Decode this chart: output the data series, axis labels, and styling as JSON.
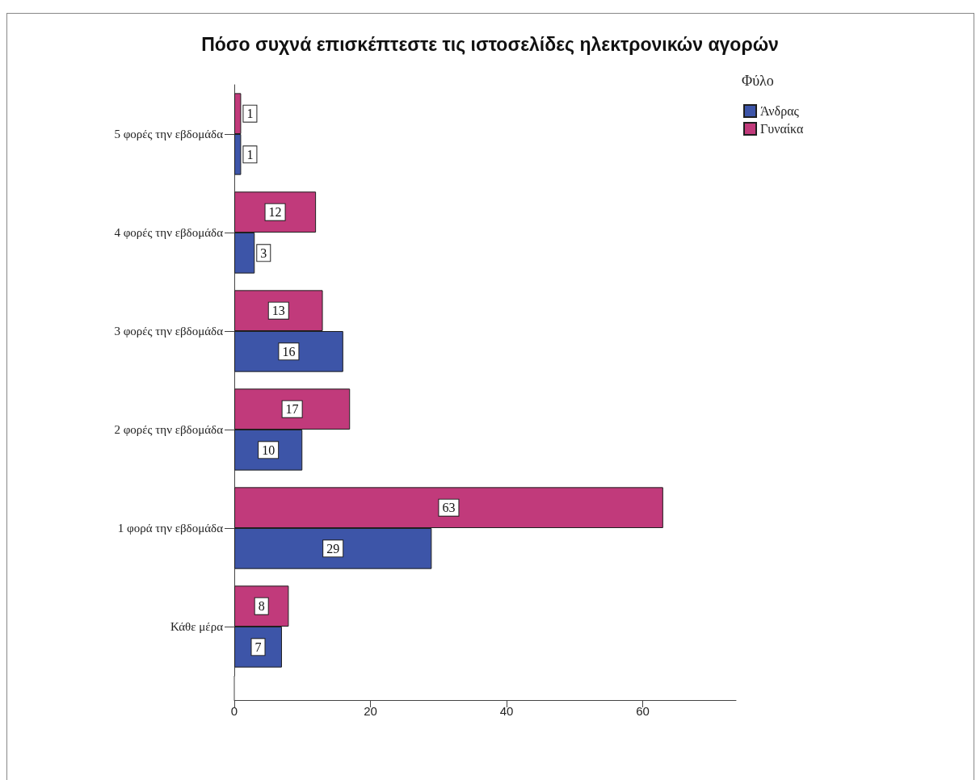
{
  "chart_data": {
    "type": "bar",
    "orientation": "horizontal",
    "title": "Πόσο συχνά επισκέπτεστε τις ιστοσελίδες ηλεκτρονικών αγορών",
    "legend_title": "Φύλο",
    "categories": [
      "5 φορές την εβδομάδα",
      "4 φορές την εβδομάδα",
      "3 φορές την εβδομάδα",
      "2 φορές την εβδομάδα",
      "1 φορά την εβδομάδα",
      "Κάθε μέρα"
    ],
    "series": [
      {
        "name": "Άνδρας",
        "color": "#3d55a8",
        "values": [
          1,
          3,
          16,
          10,
          29,
          7
        ]
      },
      {
        "name": "Γυναίκα",
        "color": "#c13a7b",
        "values": [
          1,
          12,
          13,
          17,
          63,
          8
        ]
      }
    ],
    "xlim": [
      0,
      73.7
    ],
    "xticks": [
      0,
      20,
      40,
      60
    ],
    "data_labels": true,
    "legend": "top right",
    "grid": false
  }
}
